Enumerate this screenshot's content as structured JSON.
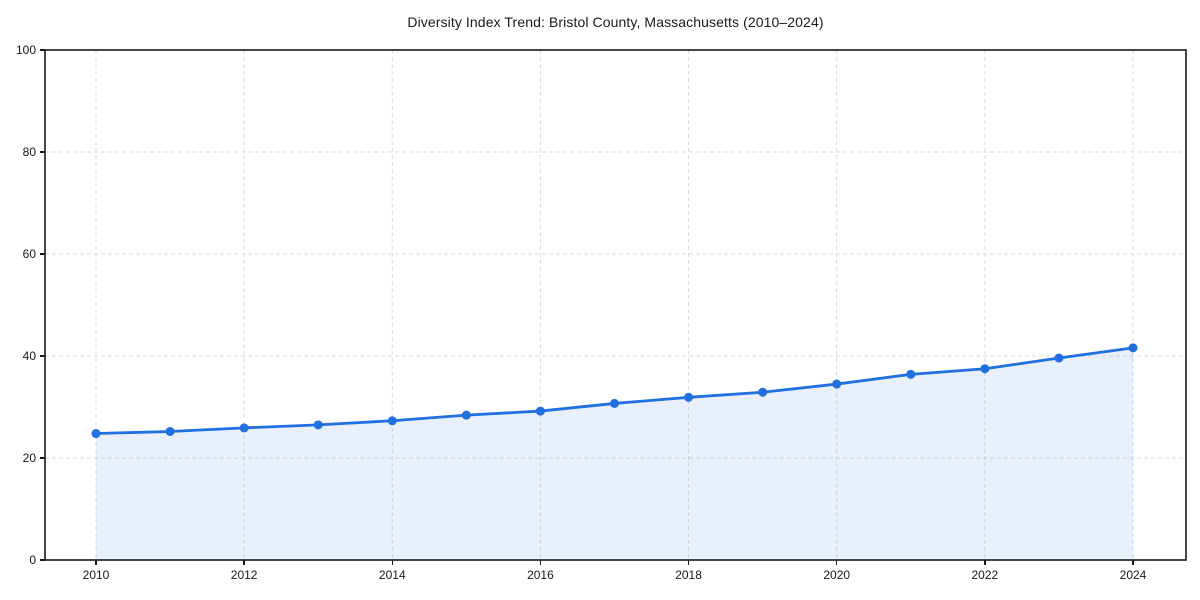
{
  "title": "Diversity Index Trend: Bristol County, Massachusetts (2010–2024)",
  "chart_data": {
    "type": "area",
    "title": "Diversity Index Trend: Bristol County, Massachusetts (2010–2024)",
    "x": [
      2010,
      2011,
      2012,
      2013,
      2014,
      2015,
      2016,
      2017,
      2018,
      2019,
      2020,
      2021,
      2022,
      2023,
      2024
    ],
    "series": [
      {
        "name": "Diversity Index",
        "values": [
          24.8,
          25.2,
          25.9,
          26.5,
          27.3,
          28.4,
          29.2,
          30.7,
          31.9,
          32.9,
          34.5,
          36.4,
          37.5,
          39.6,
          41.6
        ]
      }
    ],
    "xlabel": "",
    "ylabel": "",
    "ylim": [
      0,
      100
    ],
    "y_ticks": [
      0,
      20,
      40,
      60,
      80,
      100
    ],
    "x_ticks": [
      2010,
      2012,
      2014,
      2016,
      2018,
      2020,
      2022,
      2024
    ],
    "grid": true,
    "grid_style": "dashed",
    "legend": "none",
    "marker": "circle",
    "colors": {
      "line": "#2070E0",
      "marker": "#2070E0",
      "fill": "#2070E0",
      "fill_opacity": 0.1,
      "grid": "#DBDBDB",
      "axis": "#191919",
      "tick_text": "#191919",
      "title_text": "#1A1A1A",
      "background": "#FFFFFF"
    }
  }
}
